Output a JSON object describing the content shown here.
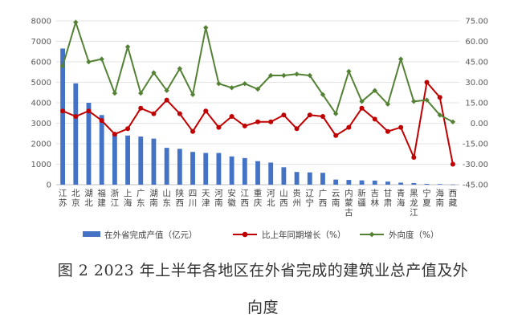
{
  "chart_data": {
    "type": "bar+line",
    "categories": [
      "江苏",
      "北京",
      "湖北",
      "福建",
      "浙江",
      "上海",
      "广东",
      "湖南",
      "山东",
      "陕西",
      "四川",
      "天津",
      "河南",
      "安徽",
      "江西",
      "重庆",
      "河北",
      "山西",
      "贵州",
      "辽宁",
      "广西",
      "云南",
      "内蒙古",
      "新疆",
      "吉林",
      "甘肃",
      "青海",
      "黑龙江",
      "宁夏",
      "海南",
      "西藏"
    ],
    "left_axis": {
      "min": 0,
      "max": 8000,
      "ticks": [
        "0",
        "1000",
        "2000",
        "3000",
        "4000",
        "5000",
        "6000",
        "7000",
        "8000"
      ]
    },
    "right_axis": {
      "min": -45,
      "max": 75,
      "ticks": [
        "-45.00",
        "-30.00",
        "-15.00",
        "0.00",
        "15.00",
        "30.00",
        "45.00",
        "60.00",
        "75.00"
      ]
    },
    "series": [
      {
        "name": "在外省完成产值（亿元）",
        "axis": "left",
        "kind": "bar",
        "color": "#4472C4",
        "values": [
          6650,
          4950,
          4000,
          3400,
          2500,
          2400,
          2350,
          2250,
          1800,
          1750,
          1600,
          1550,
          1550,
          1380,
          1300,
          1150,
          1080,
          850,
          620,
          600,
          580,
          250,
          230,
          210,
          200,
          150,
          100,
          80,
          40,
          30,
          10
        ]
      },
      {
        "name": "比上年同期增长（%）",
        "axis": "right",
        "kind": "line",
        "color": "#C00000",
        "values": [
          9,
          5,
          9,
          2,
          -8,
          -4,
          11,
          7,
          17,
          7,
          -6,
          9,
          -3,
          5,
          -2,
          1,
          1,
          6,
          -4,
          6,
          5,
          -9,
          -3,
          11,
          3,
          -6,
          -3,
          -25,
          30,
          19,
          -30
        ]
      },
      {
        "name": "外向度（%）",
        "axis": "right",
        "kind": "line",
        "color": "#548235",
        "values": [
          42,
          74,
          45,
          47,
          22,
          56,
          22,
          37,
          24,
          40,
          21,
          70,
          29,
          26,
          29,
          25,
          35,
          35,
          36,
          35,
          21,
          7,
          38,
          16,
          24,
          14,
          47,
          16,
          17,
          6,
          1
        ]
      }
    ],
    "legend_position": "bottom"
  },
  "caption": {
    "line1": "图 2 2023 年上半年各地区在外省完成的建筑业总产值及外",
    "line2": "向度"
  }
}
